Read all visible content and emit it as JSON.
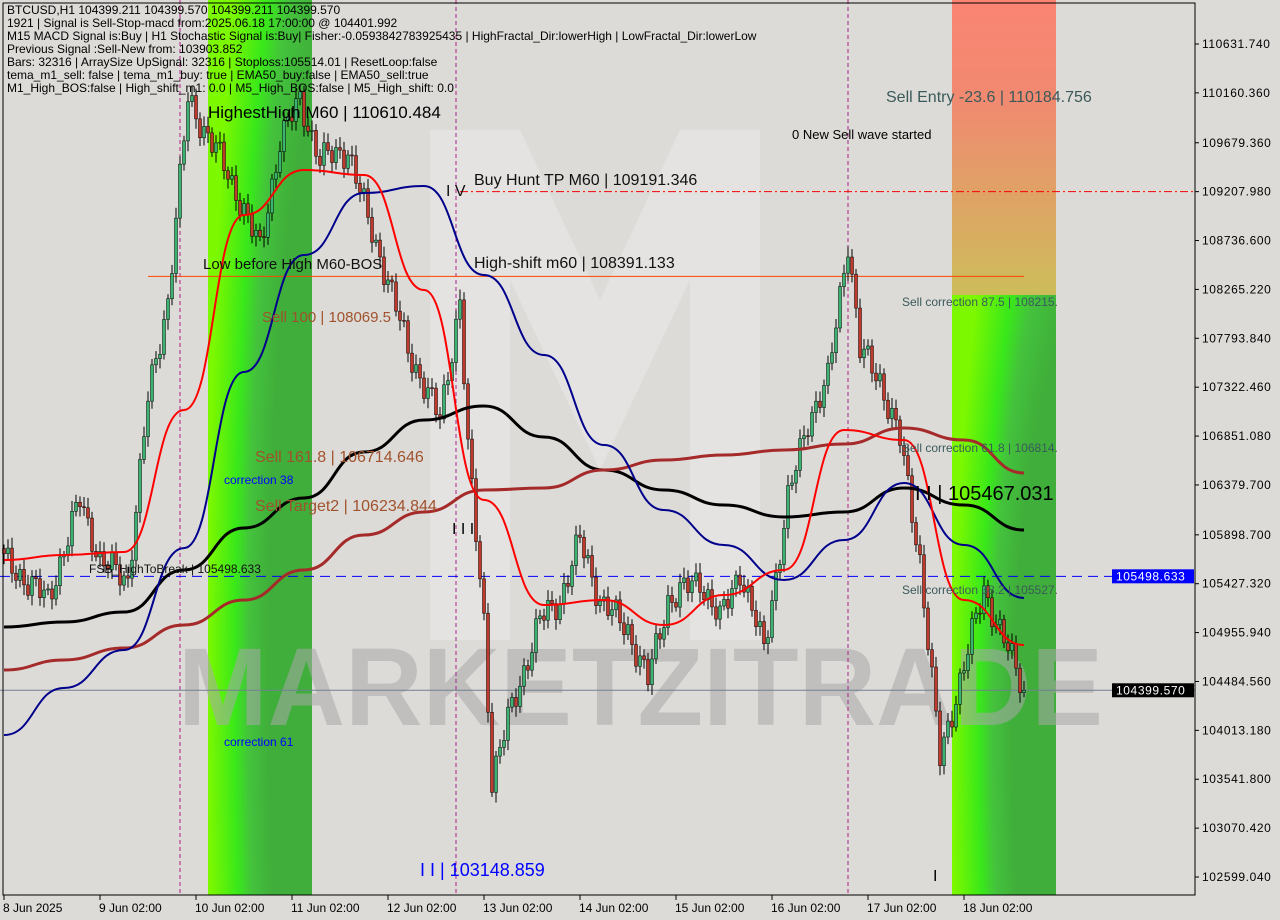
{
  "header": {
    "lines": [
      "BTCUSD,H1  104399.211 104399.570 104399.211 104399.570",
      "1921 | Signal is Sell-Stop-macd from:2025.06.18 17:00:00 @ 104401.992",
      "M15 MACD Signal is:Buy | H1 Stochastic Signal is:Buy| Fisher:-0.0593842783925435 | HighFractal_Dir:lowerHigh | LowFractal_Dir:lowerLow",
      "Previous Signal :Sell-New from: 103903.852",
      "Bars: 32316 | ArraySize UpSignal: 32316 | Stoploss:105514.01 | ResetLoop:false",
      "tema_m1_sell: false | tema_m1_buy: true | EMA50_buy:false | EMA50_sell:true",
      "M1_High_BOS:false | High_shift_m1: 0.0 | M5_High_BOS:false | M5_High_shift: 0.0"
    ]
  },
  "labels": {
    "highest_high": "HighestHigh   M60 | 110610.484",
    "buy_hunt": "Buy Hunt TP M60 | 109191.346",
    "iv": "I V",
    "low_before_high": "Low before High    M60-BOS",
    "high_shift": "High-shift m60 | 108391.133",
    "sell_100": "Sell 100 | 108069.5",
    "correction_38": "correction 38",
    "sell_161": "Sell 161.8 | 106714.646",
    "sell_target2": "Sell Target2 | 106234.844",
    "iii": "I I I",
    "fsb": "FSB_HighToBreak | 105498.633",
    "correction_61": "correction 61",
    "ii_low": "I I | 103148.859",
    "sell_entry": "Sell Entry -23.6 | 110184.756",
    "new_wave": "0 New Sell wave started",
    "sell_corr_875": "Sell correction 87.5 | 108215.",
    "sell_corr_618": "Sell correction 61.8 | 106814.",
    "ii_mid": "I I | 105467.031",
    "sell_corr_382": "Sell correction 38.2 | 105527.",
    "i_mark": "I"
  },
  "watermark": "MARKETZITRADE",
  "chart_data": {
    "type": "candlestick",
    "symbol": "BTCUSD",
    "timeframe": "H1",
    "ylim": [
      102350,
      111100
    ],
    "y_ticks": [
      "110631.740",
      "110160.360",
      "109679.360",
      "109207.980",
      "108736.600",
      "108265.220",
      "107793.840",
      "107322.460",
      "106851.080",
      "106379.700",
      "105898.700",
      "105427.320",
      "104955.940",
      "104484.560",
      "104013.180",
      "103541.800",
      "103070.420",
      "102599.040"
    ],
    "x_ticks": [
      {
        "t": "06-08 02:00",
        "label": "8 Jun 2025"
      },
      {
        "t": "06-09 02:00",
        "label": "9 Jun 02:00"
      },
      {
        "t": "06-10 02:00",
        "label": "10 Jun 02:00"
      },
      {
        "t": "06-11 02:00",
        "label": "11 Jun 02:00"
      },
      {
        "t": "06-12 02:00",
        "label": "12 Jun 02:00"
      },
      {
        "t": "06-13 02:00",
        "label": "13 Jun 02:00"
      },
      {
        "t": "06-14 02:00",
        "label": "14 Jun 02:00"
      },
      {
        "t": "06-15 02:00",
        "label": "15 Jun 02:00"
      },
      {
        "t": "06-16 02:00",
        "label": "16 Jun 02:00"
      },
      {
        "t": "06-17 02:00",
        "label": "17 Jun 02:00"
      },
      {
        "t": "06-18 02:00",
        "label": "18 Jun 02:00"
      }
    ],
    "close_anchors": [
      [
        "06-08 02:00",
        105656
      ],
      [
        "06-08 13:00",
        105270
      ],
      [
        "06-08 21:00",
        106235
      ],
      [
        "06-09 02:00",
        105656
      ],
      [
        "06-09 09:00",
        105460
      ],
      [
        "06-09 14:00",
        107200
      ],
      [
        "06-09 19:00",
        108164
      ],
      [
        "06-10 00:00",
        110092
      ],
      [
        "06-10 07:00",
        109610
      ],
      [
        "06-10 13:00",
        109127
      ],
      [
        "06-10 18:00",
        108645
      ],
      [
        "06-10 23:00",
        109700
      ],
      [
        "06-11 04:00",
        110092
      ],
      [
        "06-11 09:00",
        109513
      ],
      [
        "06-11 16:00",
        109610
      ],
      [
        "06-11 21:00",
        108934
      ],
      [
        "06-12 02:00",
        108356
      ],
      [
        "06-12 07:00",
        107680
      ],
      [
        "06-12 15:00",
        107006
      ],
      [
        "06-12 20:00",
        108164
      ],
      [
        "06-12 22:00",
        106717
      ],
      [
        "06-13 02:00",
        105077
      ],
      [
        "06-13 04:00",
        103534
      ],
      [
        "06-13 08:00",
        104113
      ],
      [
        "06-13 16:00",
        105077
      ],
      [
        "06-13 21:00",
        105270
      ],
      [
        "06-14 02:00",
        105848
      ],
      [
        "06-14 07:00",
        105270
      ],
      [
        "06-14 14:00",
        104980
      ],
      [
        "06-14 19:00",
        104499
      ],
      [
        "06-15 00:00",
        105270
      ],
      [
        "06-15 08:00",
        105463
      ],
      [
        "06-15 13:00",
        105077
      ],
      [
        "06-15 18:00",
        105559
      ],
      [
        "06-16 00:00",
        104788
      ],
      [
        "06-16 06:00",
        106235
      ],
      [
        "06-16 11:00",
        107006
      ],
      [
        "06-16 16:00",
        107391
      ],
      [
        "06-16 21:00",
        108741
      ],
      [
        "06-17 00:00",
        107680
      ],
      [
        "06-17 05:00",
        107391
      ],
      [
        "06-17 10:00",
        106813
      ],
      [
        "06-17 15:00",
        105656
      ],
      [
        "06-17 20:00",
        103727
      ],
      [
        "06-18 01:00",
        104499
      ],
      [
        "06-18 07:00",
        105367
      ],
      [
        "06-18 12:00",
        104884
      ],
      [
        "06-18 17:00",
        104399.57
      ]
    ],
    "ma_times": [
      "06-08 02:00",
      "06-08 17:00",
      "06-09 08:00",
      "06-09 23:00",
      "06-10 14:00",
      "06-11 05:00",
      "06-11 20:00",
      "06-12 11:00",
      "06-13 02:00",
      "06-13 17:00",
      "06-14 08:00",
      "06-14 23:00",
      "06-15 14:00",
      "06-16 05:00",
      "06-16 20:00",
      "06-17 11:00",
      "06-18 02:00",
      "06-18 17:00"
    ],
    "lines": [
      {
        "color": "#000000",
        "values": [
          105010,
          105058,
          105154,
          105560,
          105965,
          106254,
          106697,
          107006,
          107141,
          106842,
          106524,
          106331,
          106186,
          106071,
          106119,
          106350,
          106186,
          105945
        ]
      },
      {
        "color": "#a52a2a",
        "values": [
          104595,
          104692,
          104807,
          105029,
          105270,
          105560,
          105897,
          106119,
          106331,
          106350,
          106524,
          106620,
          106668,
          106717,
          106774,
          106929,
          106813,
          106495
        ]
      },
      {
        "color": "#00008b",
        "values": [
          103968,
          104422,
          104788,
          105771,
          107469,
          108597,
          109195,
          109262,
          108404,
          107633,
          106765,
          106138,
          105801,
          105463,
          105849,
          106399,
          105801,
          105290
        ]
      },
      {
        "color": "#ff0000",
        "values": [
          105656,
          105704,
          105733,
          107102,
          108983,
          109417,
          109369,
          108259,
          106235,
          105222,
          105270,
          105029,
          105318,
          105560,
          106909,
          106813,
          105270,
          104836
        ]
      }
    ],
    "levels": [
      {
        "price": 105498.633,
        "color": "#0000ff",
        "style": "dashed",
        "label": "105498.633"
      },
      {
        "price": 104399.57,
        "color": "#708090",
        "style": "solid",
        "label": "104399.570"
      },
      {
        "price": 109207.98,
        "color": "#ff0000",
        "style": "dashdot",
        "from": "06-12 20:00"
      },
      {
        "price": 108391.133,
        "color": "#ff4500",
        "style": "solid",
        "from": "06-09 14:00",
        "to": "06-18 17:00"
      }
    ],
    "sessions": [
      "06-09 22:00",
      "06-12 19:00",
      "06-16 21:00"
    ],
    "zones": [
      {
        "from": "06-10 05:00",
        "to": "06-11 07:00",
        "type": "green"
      },
      {
        "from": "06-17 23:00",
        "to": "06-19 01:00",
        "type": "sell"
      }
    ],
    "colors": {
      "up": "#3cb371",
      "down": "#c0392b",
      "wick": "#000000"
    }
  }
}
